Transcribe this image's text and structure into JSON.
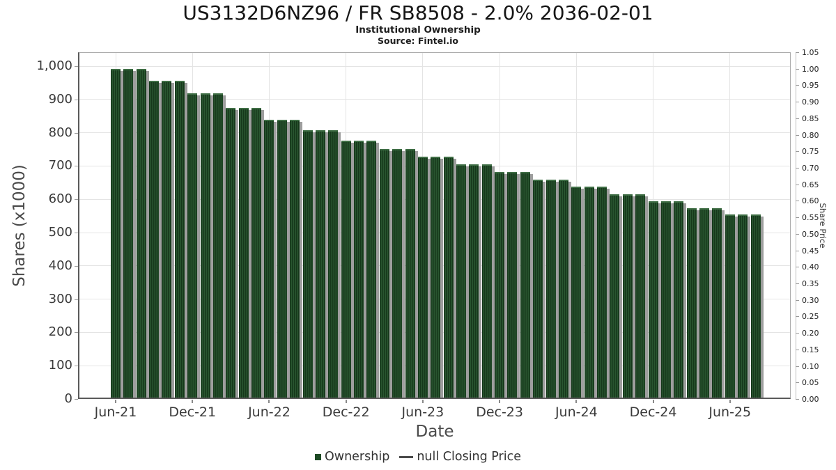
{
  "title": "US3132D6NZ96 / FR SB8508 - 2.0% 2036-02-01",
  "subtitle": "Institutional Ownership",
  "source": "Source: Fintel.io",
  "legend": {
    "ownership_label": "Ownership",
    "price_label": "null Closing Price"
  },
  "colors": {
    "bar": "#1d4a24",
    "bar_stripe_dark": "#16381b",
    "bar_stripe_light": "#295630",
    "bar_shadow": "#9e9e9e",
    "grid": "#e4e4e4",
    "axis_dark": "#5a5a5a",
    "axis_light": "#ababab",
    "tick_text": "#3a3a3a",
    "axis_title_text": "#4a4a4a"
  },
  "chart_data": {
    "type": "bar",
    "title": "US3132D6NZ96 / FR SB8508 - 2.0% 2036-02-01",
    "subtitle": "Institutional Ownership",
    "source": "Source: Fintel.io",
    "xlabel": "Date",
    "ylabel_left": "Shares (x1000)",
    "ylabel_right": "Share Price",
    "grid": true,
    "legend_position": "bottom-center",
    "x_tick_labels": [
      "Jun-21",
      "Dec-21",
      "Jun-22",
      "Dec-22",
      "Jun-23",
      "Dec-23",
      "Jun-24",
      "Dec-24",
      "Jun-25"
    ],
    "x_tick_bar_indices": [
      0,
      6,
      12,
      18,
      24,
      30,
      36,
      42,
      48
    ],
    "y_left_tick_labels": [
      "0",
      "100",
      "200",
      "300",
      "400",
      "500",
      "600",
      "700",
      "800",
      "900",
      "1,000"
    ],
    "y_left_tick_values": [
      0,
      100,
      200,
      300,
      400,
      500,
      600,
      700,
      800,
      900,
      1000
    ],
    "ylim_left": [
      0,
      1042
    ],
    "y_right_tick_labels": [
      "0.00",
      "0.05",
      "0.10",
      "0.15",
      "0.20",
      "0.25",
      "0.30",
      "0.35",
      "0.40",
      "0.45",
      "0.50",
      "0.55",
      "0.60",
      "0.65",
      "0.70",
      "0.75",
      "0.80",
      "0.85",
      "0.90",
      "0.95",
      "1.00",
      "1.05"
    ],
    "ylim_right": [
      0,
      1.05
    ],
    "series": [
      {
        "name": "Ownership",
        "type": "bar",
        "values": [
          991,
          991,
          991,
          957,
          957,
          957,
          919,
          919,
          919,
          875,
          875,
          875,
          840,
          840,
          840,
          808,
          808,
          808,
          776,
          776,
          776,
          751,
          751,
          751,
          728,
          728,
          728,
          705,
          705,
          705,
          682,
          682,
          682,
          660,
          660,
          660,
          638,
          638,
          638,
          615,
          615,
          615,
          594,
          594,
          594,
          573,
          573,
          573,
          555,
          555,
          555
        ]
      },
      {
        "name": "null Closing Price",
        "type": "line",
        "values": []
      }
    ]
  }
}
